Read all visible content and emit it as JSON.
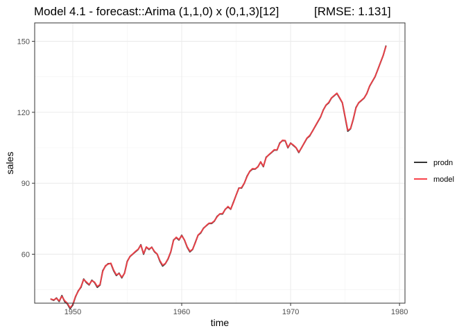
{
  "chart_data": {
    "type": "line",
    "title": "Model 4.1 - forecast::Arima (1,1,0) x (0,1,3)[12]",
    "subtitle": "[RMSE: 1.131]",
    "xlabel": "time",
    "ylabel": "sales",
    "xlim": [
      1946.5,
      1980.5
    ],
    "ylim": [
      39.3,
      157.8
    ],
    "x_ticks": [
      1950,
      1960,
      1970,
      1980
    ],
    "x_tick_labels": [
      "1950",
      "1960",
      "1970",
      "1980"
    ],
    "y_ticks": [
      60,
      90,
      120,
      150
    ],
    "y_tick_labels": [
      "60",
      "90",
      "120",
      "150"
    ],
    "grid": true,
    "legend_position": "right",
    "series": [
      {
        "name": "prodn",
        "color": "#333333",
        "x": [
          1948.0,
          1948.25,
          1948.5,
          1948.75,
          1949.0,
          1949.25,
          1949.5,
          1949.75,
          1950.0,
          1950.25,
          1950.5,
          1950.75,
          1951.0,
          1951.25,
          1951.5,
          1951.75,
          1952.0,
          1952.25,
          1952.5,
          1952.75,
          1953.0,
          1953.25,
          1953.5,
          1953.75,
          1954.0,
          1954.25,
          1954.5,
          1954.75,
          1955.0,
          1955.25,
          1955.5,
          1955.75,
          1956.0,
          1956.25,
          1956.5,
          1956.75,
          1957.0,
          1957.25,
          1957.5,
          1957.75,
          1958.0,
          1958.25,
          1958.5,
          1958.75,
          1959.0,
          1959.25,
          1959.5,
          1959.75,
          1960.0,
          1960.25,
          1960.5,
          1960.75,
          1961.0,
          1961.25,
          1961.5,
          1961.75,
          1962.0,
          1962.25,
          1962.5,
          1962.75,
          1963.0,
          1963.25,
          1963.5,
          1963.75,
          1964.0,
          1964.25,
          1964.5,
          1964.75,
          1965.0,
          1965.25,
          1965.5,
          1965.75,
          1966.0,
          1966.25,
          1966.5,
          1966.75,
          1967.0,
          1967.25,
          1967.5,
          1967.75,
          1968.0,
          1968.25,
          1968.5,
          1968.75,
          1969.0,
          1969.25,
          1969.5,
          1969.75,
          1970.0,
          1970.25,
          1970.5,
          1970.75,
          1971.0,
          1971.25,
          1971.5,
          1971.75,
          1972.0,
          1972.25,
          1972.5,
          1972.75,
          1973.0,
          1973.25,
          1973.5,
          1973.75,
          1974.0,
          1974.25,
          1974.5,
          1974.75,
          1975.0,
          1975.25,
          1975.5,
          1975.75,
          1976.0,
          1976.25,
          1976.5,
          1976.75,
          1977.0,
          1977.25,
          1977.5,
          1977.75,
          1978.0,
          1978.25,
          1978.5,
          1978.75
        ],
        "values": [
          41,
          40.5,
          41.5,
          40,
          42.5,
          40,
          39,
          37,
          38.5,
          42,
          44.5,
          46,
          49.5,
          48,
          47,
          49,
          48,
          46,
          47,
          53,
          55,
          56,
          56,
          53,
          51,
          52,
          50,
          52,
          57,
          59,
          60,
          61,
          62,
          64,
          60,
          63,
          62,
          63,
          61,
          60,
          57,
          55,
          56,
          58,
          61,
          66,
          67,
          66,
          68,
          66,
          63,
          61,
          62,
          65,
          68,
          69,
          71,
          72,
          73,
          73,
          74,
          76,
          77,
          77,
          79,
          80,
          79,
          82,
          85,
          88,
          88,
          90,
          93,
          95,
          96,
          96,
          97,
          99,
          97,
          101,
          102,
          103,
          104,
          104,
          107,
          108,
          108,
          105,
          107,
          106,
          105,
          103,
          105,
          107,
          109,
          110,
          112,
          114,
          116,
          118,
          121,
          123,
          124,
          126,
          127,
          128,
          126,
          124,
          118,
          112,
          113,
          117,
          122,
          124,
          125,
          126,
          128,
          131,
          133,
          135,
          138,
          141,
          144,
          148
        ]
      },
      {
        "name": "model",
        "color": "#f8424a",
        "x": [
          1948.0,
          1948.25,
          1948.5,
          1948.75,
          1949.0,
          1949.25,
          1949.5,
          1949.75,
          1950.0,
          1950.25,
          1950.5,
          1950.75,
          1951.0,
          1951.25,
          1951.5,
          1951.75,
          1952.0,
          1952.25,
          1952.5,
          1952.75,
          1953.0,
          1953.25,
          1953.5,
          1953.75,
          1954.0,
          1954.25,
          1954.5,
          1954.75,
          1955.0,
          1955.25,
          1955.5,
          1955.75,
          1956.0,
          1956.25,
          1956.5,
          1956.75,
          1957.0,
          1957.25,
          1957.5,
          1957.75,
          1958.0,
          1958.25,
          1958.5,
          1958.75,
          1959.0,
          1959.25,
          1959.5,
          1959.75,
          1960.0,
          1960.25,
          1960.5,
          1960.75,
          1961.0,
          1961.25,
          1961.5,
          1961.75,
          1962.0,
          1962.25,
          1962.5,
          1962.75,
          1963.0,
          1963.25,
          1963.5,
          1963.75,
          1964.0,
          1964.25,
          1964.5,
          1964.75,
          1965.0,
          1965.25,
          1965.5,
          1965.75,
          1966.0,
          1966.25,
          1966.5,
          1966.75,
          1967.0,
          1967.25,
          1967.5,
          1967.75,
          1968.0,
          1968.25,
          1968.5,
          1968.75,
          1969.0,
          1969.25,
          1969.5,
          1969.75,
          1970.0,
          1970.25,
          1970.5,
          1970.75,
          1971.0,
          1971.25,
          1971.5,
          1971.75,
          1972.0,
          1972.25,
          1972.5,
          1972.75,
          1973.0,
          1973.25,
          1973.5,
          1973.75,
          1974.0,
          1974.25,
          1974.5,
          1974.75,
          1975.0,
          1975.25,
          1975.5,
          1975.75,
          1976.0,
          1976.25,
          1976.5,
          1976.75,
          1977.0,
          1977.25,
          1977.5,
          1977.75,
          1978.0,
          1978.25,
          1978.5,
          1978.75
        ],
        "values": [
          41,
          40.7,
          41.3,
          40.3,
          42.2,
          40.4,
          39.3,
          37.4,
          38.7,
          42.2,
          44.3,
          46.3,
          49.3,
          48.3,
          47.2,
          48.8,
          48.2,
          46.4,
          47.2,
          52.7,
          55.2,
          55.8,
          56.2,
          53.3,
          51.3,
          51.8,
          50.3,
          51.9,
          56.8,
          59.1,
          60.1,
          61.2,
          62.1,
          63.8,
          60.3,
          63.1,
          62.2,
          62.9,
          61.2,
          60.1,
          57.3,
          55.4,
          56.1,
          58.2,
          61.1,
          65.8,
          67.2,
          66.2,
          67.8,
          66.1,
          63.2,
          61.3,
          62.1,
          64.8,
          68.1,
          69.2,
          70.9,
          72.1,
          73.1,
          73.2,
          74.1,
          75.8,
          77.1,
          77.2,
          78.9,
          80.2,
          79.1,
          81.8,
          85.1,
          87.9,
          88.2,
          90.1,
          92.8,
          95.1,
          96.2,
          96.1,
          96.9,
          99.1,
          97.2,
          100.8,
          102.1,
          103.1,
          104.2,
          104.1,
          106.8,
          108.2,
          108.1,
          105.2,
          106.9,
          106.2,
          105.1,
          103.2,
          104.9,
          107.1,
          109.1,
          110.2,
          111.9,
          114.1,
          116.1,
          118.1,
          120.9,
          123.1,
          124.2,
          126.1,
          127.1,
          128.1,
          126.2,
          124.1,
          118.3,
          112.4,
          113.1,
          117.2,
          121.8,
          124.1,
          125.1,
          126.1,
          127.9,
          131.1,
          133.1,
          135.1,
          137.9,
          141.1,
          144.1,
          147.8
        ]
      }
    ]
  }
}
